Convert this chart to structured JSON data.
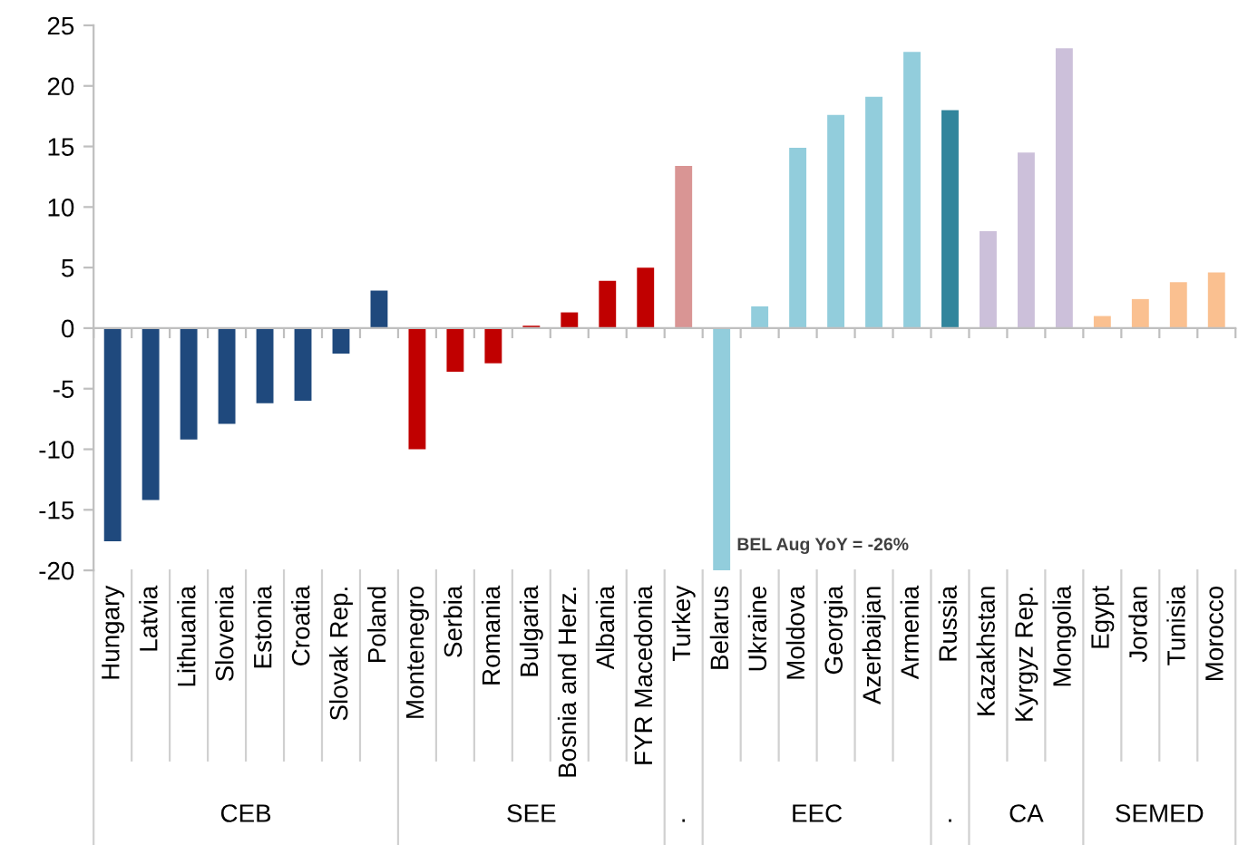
{
  "chart_data": {
    "type": "bar",
    "categories": [
      "Hungary",
      "Latvia",
      "Lithuania",
      "Slovenia",
      "Estonia",
      "Croatia",
      "Slovak Rep.",
      "Poland",
      "Montenegro",
      "Serbia",
      "Romania",
      "Bulgaria",
      "Bosnia and Herz.",
      "Albania",
      "FYR Macedonia",
      "Turkey",
      "Belarus",
      "Ukraine",
      "Moldova",
      "Georgia",
      "Azerbaijan",
      "Armenia",
      "Russia",
      "Kazakhstan",
      "Kyrgyz Rep.",
      "Mongolia",
      "Egypt",
      "Jordan",
      "Tunisia",
      "Morocco"
    ],
    "values": [
      -17.6,
      -14.2,
      -9.2,
      -7.9,
      -6.2,
      -6.0,
      -2.1,
      3.1,
      -10.0,
      -3.6,
      -2.9,
      0.2,
      1.3,
      3.9,
      5.0,
      13.4,
      -20,
      1.8,
      14.9,
      17.6,
      19.1,
      22.8,
      18.0,
      8.0,
      14.5,
      23.1,
      1.0,
      2.4,
      3.8,
      4.6
    ],
    "colors": [
      "#1f497d",
      "#1f497d",
      "#1f497d",
      "#1f497d",
      "#1f497d",
      "#1f497d",
      "#1f497d",
      "#1f497d",
      "#c00000",
      "#c00000",
      "#c00000",
      "#c00000",
      "#c00000",
      "#c00000",
      "#c00000",
      "#d99594",
      "#92cddc",
      "#92cddc",
      "#92cddc",
      "#92cddc",
      "#92cddc",
      "#92cddc",
      "#31859c",
      "#ccc0da",
      "#ccc0da",
      "#ccc0da",
      "#fac090",
      "#fac090",
      "#fac090",
      "#fac090"
    ],
    "ylim": [
      -20,
      25
    ],
    "yticks": [
      -20,
      -15,
      -10,
      -5,
      0,
      5,
      10,
      15,
      20,
      25
    ],
    "legend": false,
    "annotations": [
      "CEB",
      "SEE",
      ".",
      "EEC",
      ".",
      "CA",
      "SEMED",
      {
        "text": "BEL Aug YoY = -26%",
        "x": "Belarus",
        "y": -20
      }
    ]
  }
}
